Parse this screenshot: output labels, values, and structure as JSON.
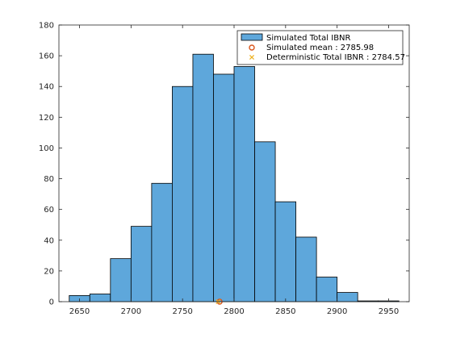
{
  "chart_data": {
    "type": "bar",
    "xlim": [
      2630,
      2970
    ],
    "ylim": [
      0,
      180
    ],
    "x_ticks": [
      2650,
      2700,
      2750,
      2800,
      2850,
      2900,
      2950
    ],
    "y_ticks": [
      0,
      20,
      40,
      60,
      80,
      100,
      120,
      140,
      160,
      180
    ],
    "bins": [
      {
        "start": 2640,
        "end": 2660,
        "count": 4
      },
      {
        "start": 2660,
        "end": 2680,
        "count": 5
      },
      {
        "start": 2680,
        "end": 2700,
        "count": 28
      },
      {
        "start": 2700,
        "end": 2720,
        "count": 49
      },
      {
        "start": 2720,
        "end": 2740,
        "count": 77
      },
      {
        "start": 2740,
        "end": 2760,
        "count": 140
      },
      {
        "start": 2760,
        "end": 2780,
        "count": 161
      },
      {
        "start": 2780,
        "end": 2800,
        "count": 148
      },
      {
        "start": 2800,
        "end": 2820,
        "count": 153
      },
      {
        "start": 2820,
        "end": 2840,
        "count": 104
      },
      {
        "start": 2840,
        "end": 2860,
        "count": 65
      },
      {
        "start": 2860,
        "end": 2880,
        "count": 42
      },
      {
        "start": 2880,
        "end": 2900,
        "count": 16
      },
      {
        "start": 2900,
        "end": 2920,
        "count": 6
      },
      {
        "start": 2920,
        "end": 2940,
        "count": 0.5
      },
      {
        "start": 2940,
        "end": 2960,
        "count": 0.5
      }
    ],
    "markers": [
      {
        "name": "Simulated mean : 2785.98",
        "x": 2785.98,
        "y": 0,
        "symbol": "circle",
        "color": "#d95319"
      },
      {
        "name": "Deterministic Total IBNR : 2784.57",
        "x": 2784.57,
        "y": 0,
        "symbol": "x",
        "color": "#edb120"
      }
    ],
    "legend": {
      "position": "top-right",
      "entries": [
        "Simulated Total IBNR",
        "Simulated mean : 2785.98",
        "Deterministic Total IBNR : 2784.57"
      ]
    },
    "colors": {
      "bar_fill": "#5ea7db",
      "bar_edge": "#000000"
    },
    "grid": false
  }
}
